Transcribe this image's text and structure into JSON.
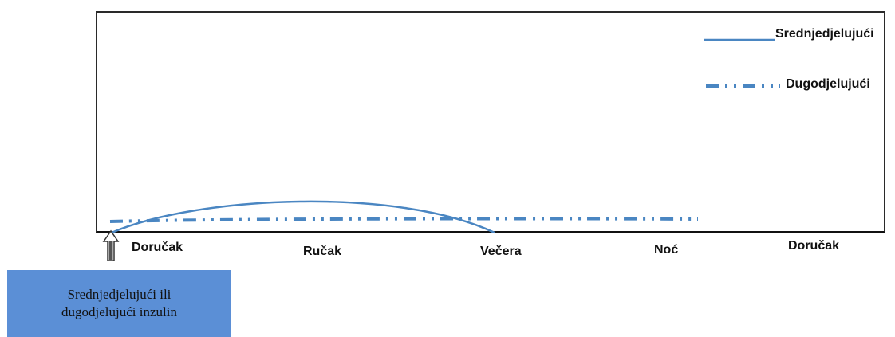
{
  "legend": {
    "intermediate": "Srednjedjelujući",
    "long": "Dugodjelujući"
  },
  "time_axis": {
    "labels": [
      "Doručak",
      "Ručak",
      "Večera",
      "Noć",
      "Doručak"
    ]
  },
  "callout": {
    "line1": "Srednjedjelujući ili",
    "line2": "dugodjelujući inzulin"
  },
  "colors": {
    "curve": "#4a86c2",
    "callout_fill": "#5b8fd6",
    "arrow": "#444444"
  },
  "icons": {
    "injection_marker": "up-arrow-icon"
  }
}
